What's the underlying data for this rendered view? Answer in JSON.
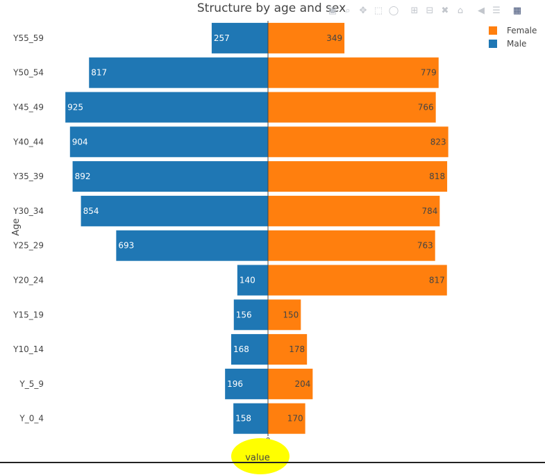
{
  "chart_data": {
    "type": "bar",
    "orientation": "horizontal",
    "title": "Structure by age and sex",
    "xlabel": "value",
    "ylabel": "Age",
    "categories": [
      "Y55_59",
      "Y50_54",
      "Y45_49",
      "Y40_44",
      "Y35_39",
      "Y30_34",
      "Y25_29",
      "Y20_24",
      "Y15_19",
      "Y10_14",
      "Y_5_9",
      "Y_0_4"
    ],
    "series": [
      {
        "name": "Female",
        "color": "#ff7f0e",
        "values": [
          349,
          779,
          766,
          823,
          818,
          784,
          763,
          817,
          150,
          178,
          204,
          170
        ]
      },
      {
        "name": "Male",
        "color": "#1f77b4",
        "values": [
          257,
          817,
          925,
          904,
          892,
          854,
          693,
          140,
          156,
          168,
          196,
          158
        ]
      }
    ],
    "xtick_labels": [
      "0"
    ],
    "legend_position": "top-right",
    "highlight": {
      "target": "xlabel",
      "color": "#ffff00"
    }
  },
  "modebar": {
    "icons": [
      "camera-icon",
      "zoom-icon",
      "pan-icon",
      "box-select-icon",
      "lasso-icon",
      "zoom-in-icon",
      "zoom-out-icon",
      "autoscale-icon",
      "reset-axes-icon",
      "spike-lines-icon",
      "compare-hover-icon",
      "plotly-logo-icon"
    ]
  }
}
